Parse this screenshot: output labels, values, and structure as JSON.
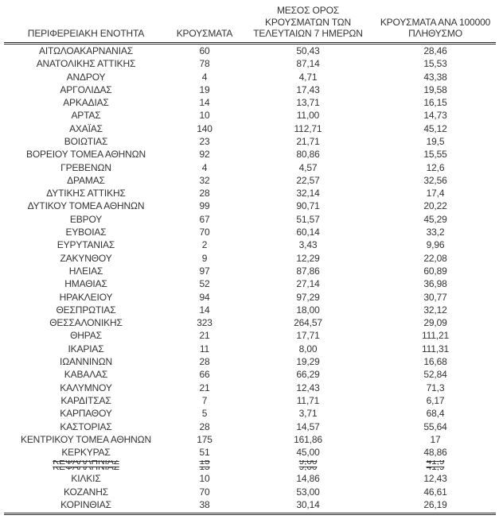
{
  "colors": {
    "text": "#333333",
    "rule": "#2b2b2b",
    "background": "#ffffff"
  },
  "table": {
    "columns": [
      {
        "id": "region",
        "label": "ΠΕΡΙΦΕΡΕΙΑΚΗ ΕΝΟΤΗΤΑ"
      },
      {
        "id": "cases",
        "label": "ΚΡΟΥΣΜΑΤΑ"
      },
      {
        "id": "avg7",
        "label": "ΜΕΣΟΣ ΟΡΟΣ ΚΡΟΥΣΜΑΤΩΝ ΤΩΝ ΤΕΛΕΥΤΑΙΩΝ 7 ΗΜΕΡΩΝ",
        "lines": [
          "ΜΕΣΟΣ ΟΡΟΣ",
          "ΚΡΟΥΣΜΑΤΩΝ ΤΩΝ",
          "ΤΕΛΕΥΤΑΙΩΝ 7 ΗΜΕΡΩΝ"
        ]
      },
      {
        "id": "per100k",
        "label": "ΚΡΟΥΣΜΑΤΑ ΑΝΑ 100000 ΠΛΗΘΥΣΜΟ",
        "lines": [
          "ΚΡΟΥΣΜΑΤΑ ΑΝΑ 100000",
          "ΠΛΗΘΥΣΜΟ"
        ]
      }
    ],
    "rows": [
      {
        "name": "ΑΙΤΩΛΟΑΚΑΡΝΑΝΙΑΣ",
        "cases": "60",
        "avg7": "50,43",
        "per100k": "28,46"
      },
      {
        "name": "ΑΝΑΤΟΛΙΚΗΣ ΑΤΤΙΚΗΣ",
        "cases": "78",
        "avg7": "87,14",
        "per100k": "15,53"
      },
      {
        "name": "ΑΝΔΡΟΥ",
        "cases": "4",
        "avg7": "4,71",
        "per100k": "43,38"
      },
      {
        "name": "ΑΡΓΟΛΙΔΑΣ",
        "cases": "19",
        "avg7": "17,43",
        "per100k": "19,58"
      },
      {
        "name": "ΑΡΚΑΔΙΑΣ",
        "cases": "14",
        "avg7": "13,71",
        "per100k": "16,15"
      },
      {
        "name": "ΑΡΤΑΣ",
        "cases": "10",
        "avg7": "11,00",
        "per100k": "14,73"
      },
      {
        "name": "ΑΧΑΪΑΣ",
        "cases": "140",
        "avg7": "112,71",
        "per100k": "45,12"
      },
      {
        "name": "ΒΟΙΩΤΙΑΣ",
        "cases": "23",
        "avg7": "21,71",
        "per100k": "19,5"
      },
      {
        "name": "ΒΟΡΕΙΟΥ ΤΟΜΕΑ ΑΘΗΝΩΝ",
        "cases": "92",
        "avg7": "80,86",
        "per100k": "15,55"
      },
      {
        "name": "ΓΡΕΒΕΝΩΝ",
        "cases": "4",
        "avg7": "4,57",
        "per100k": "12,6"
      },
      {
        "name": "ΔΡΑΜΑΣ",
        "cases": "32",
        "avg7": "22,57",
        "per100k": "32,56"
      },
      {
        "name": "ΔΥΤΙΚΗΣ ΑΤΤΙΚΗΣ",
        "cases": "28",
        "avg7": "32,14",
        "per100k": "17,4"
      },
      {
        "name": "ΔΥΤΙΚΟΥ ΤΟΜΕΑ ΑΘΗΝΩΝ",
        "cases": "99",
        "avg7": "90,71",
        "per100k": "20,22"
      },
      {
        "name": "ΕΒΡΟΥ",
        "cases": "67",
        "avg7": "51,57",
        "per100k": "45,29"
      },
      {
        "name": "ΕΥΒΟΙΑΣ",
        "cases": "70",
        "avg7": "60,14",
        "per100k": "33,2"
      },
      {
        "name": "ΕΥΡΥΤΑΝΙΑΣ",
        "cases": "2",
        "avg7": "3,43",
        "per100k": "9,96"
      },
      {
        "name": "ΖΑΚΥΝΘΟΥ",
        "cases": "9",
        "avg7": "12,29",
        "per100k": "22,08"
      },
      {
        "name": "ΗΛΕΙΑΣ",
        "cases": "97",
        "avg7": "87,86",
        "per100k": "60,89"
      },
      {
        "name": "ΗΜΑΘΙΑΣ",
        "cases": "52",
        "avg7": "27,14",
        "per100k": "36,98"
      },
      {
        "name": "ΗΡΑΚΛΕΙΟΥ",
        "cases": "94",
        "avg7": "97,29",
        "per100k": "30,77"
      },
      {
        "name": "ΘΕΣΠΡΩΤΙΑΣ",
        "cases": "14",
        "avg7": "18,00",
        "per100k": "32,12"
      },
      {
        "name": "ΘΕΣΣΑΛΟΝΙΚΗΣ",
        "cases": "323",
        "avg7": "264,57",
        "per100k": "29,09"
      },
      {
        "name": "ΘΗΡΑΣ",
        "cases": "21",
        "avg7": "17,71",
        "per100k": "111,21"
      },
      {
        "name": "ΙΚΑΡΙΑΣ",
        "cases": "11",
        "avg7": "8,00",
        "per100k": "111,31"
      },
      {
        "name": "ΙΩΑΝΝΙΝΩΝ",
        "cases": "28",
        "avg7": "19,29",
        "per100k": "16,68"
      },
      {
        "name": "ΚΑΒΑΛΑΣ",
        "cases": "66",
        "avg7": "66,29",
        "per100k": "52,84"
      },
      {
        "name": "ΚΑΛΥΜΝΟΥ",
        "cases": "21",
        "avg7": "12,43",
        "per100k": "71,3"
      },
      {
        "name": "ΚΑΡΔΙΤΣΑΣ",
        "cases": "7",
        "avg7": "11,71",
        "per100k": "6,17"
      },
      {
        "name": "ΚΑΡΠΑΘΟΥ",
        "cases": "5",
        "avg7": "3,71",
        "per100k": "68,4"
      },
      {
        "name": "ΚΑΣΤΟΡΙΑΣ",
        "cases": "28",
        "avg7": "14,57",
        "per100k": "55,64"
      },
      {
        "name": "ΚΕΝΤΡΙΚΟΥ ΤΟΜΕΑ ΑΘΗΝΩΝ",
        "cases": "175",
        "avg7": "161,86",
        "per100k": "17"
      },
      {
        "name": "ΚΕΡΚΥΡΑΣ",
        "cases": "51",
        "avg7": "45,00",
        "per100k": "48,86"
      },
      {
        "name": "ΚΕΦΑΛΛΗΝΙΑΣ",
        "cases": "15",
        "avg7": "9,00",
        "per100k": "41,9",
        "glitched": true
      },
      {
        "name": "ΚΙΛΚΙΣ",
        "cases": "10",
        "avg7": "14,86",
        "per100k": "12,43"
      },
      {
        "name": "ΚΟΖΑΝΗΣ",
        "cases": "70",
        "avg7": "53,00",
        "per100k": "46,61"
      },
      {
        "name": "ΚΟΡΙΝΘΙΑΣ",
        "cases": "38",
        "avg7": "30,14",
        "per100k": "26,19"
      }
    ]
  }
}
